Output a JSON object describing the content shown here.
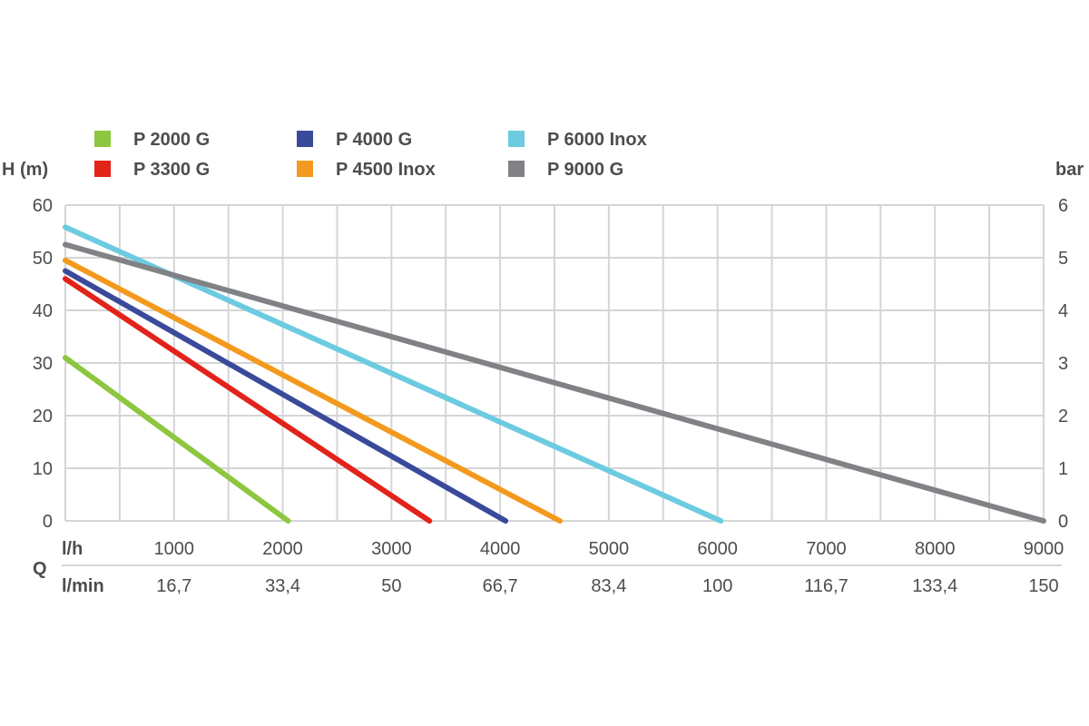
{
  "chart_data": {
    "type": "line",
    "y_left_label": "H (m)",
    "y_right_label": "bar",
    "x_label": "Q",
    "x_row1_unit": "l/h",
    "x_row2_unit": "l/min",
    "ylim": [
      0,
      60
    ],
    "y_ticks": [
      0,
      10,
      20,
      30,
      40,
      50,
      60
    ],
    "y_right_ticks": [
      "0",
      "1",
      "2",
      "3",
      "4",
      "5",
      "6"
    ],
    "xlim": [
      0,
      9000
    ],
    "x_ticks_lh": [
      "1000",
      "2000",
      "3000",
      "4000",
      "5000",
      "6000",
      "7000",
      "8000",
      "9000"
    ],
    "x_ticks_lmin": [
      "16,7",
      "33,4",
      "50",
      "66,7",
      "83,4",
      "100",
      "116,7",
      "133,4",
      "150"
    ],
    "grid": true,
    "legend_position": "top",
    "series": [
      {
        "name": "P 2000 G",
        "color": "#8dc63f",
        "x": [
          0,
          2050
        ],
        "y": [
          31,
          0
        ]
      },
      {
        "name": "P 3300 G",
        "color": "#e2231a",
        "x": [
          0,
          3350
        ],
        "y": [
          46,
          0
        ]
      },
      {
        "name": "P 4000 G",
        "color": "#3a4a9a",
        "x": [
          0,
          4050
        ],
        "y": [
          47.5,
          0
        ]
      },
      {
        "name": "P 4500 Inox",
        "color": "#f39a1e",
        "x": [
          0,
          4550
        ],
        "y": [
          49.5,
          0
        ]
      },
      {
        "name": "P 6000 Inox",
        "color": "#6ccbe0",
        "x": [
          0,
          6030
        ],
        "y": [
          55.8,
          0
        ]
      },
      {
        "name": "P 9000 G",
        "color": "#808285",
        "x": [
          0,
          9000
        ],
        "y": [
          52.5,
          0
        ]
      }
    ]
  }
}
